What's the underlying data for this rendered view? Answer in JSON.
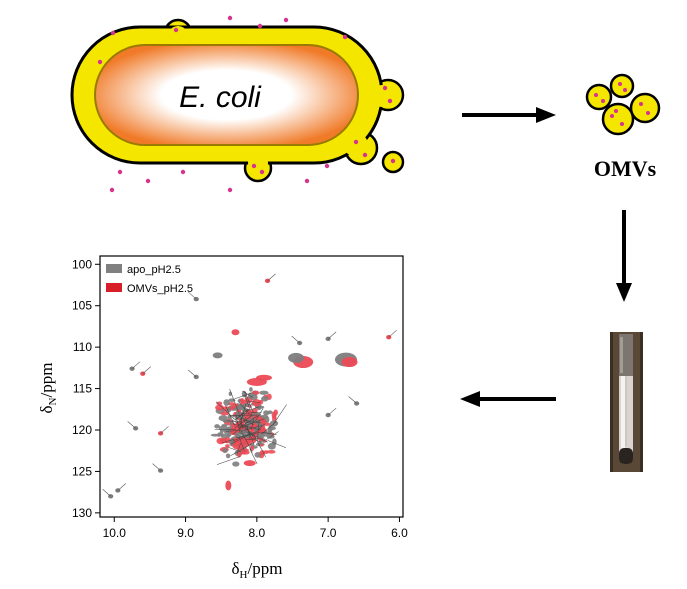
{
  "cell": {
    "label": "E. coli"
  },
  "vesicles": {
    "label": "OMVs"
  },
  "spectrum": {
    "legend": [
      {
        "name": "apo_pH2.5",
        "color": "#808080"
      },
      {
        "name": "OMVs_pH2.5",
        "color": "#e8303a"
      }
    ],
    "x_axis": {
      "label_main": "δ",
      "label_sub": "H",
      "label_unit": "/ppm",
      "ticks": [
        "10.0",
        "9.0",
        "8.0",
        "7.0",
        "6.0"
      ],
      "range": [
        10.2,
        5.95
      ]
    },
    "y_axis": {
      "label_main": "δ",
      "label_sub": "N",
      "label_unit": "/ppm",
      "ticks": [
        "100",
        "105",
        "110",
        "115",
        "120",
        "125",
        "130"
      ],
      "range": [
        99,
        130.5
      ]
    }
  },
  "colors": {
    "membrane": "#f5e600",
    "cytoplasm_outer": "#f07a28",
    "cytoplasm_inner": "#ffffff",
    "dot": "#d6338f"
  }
}
